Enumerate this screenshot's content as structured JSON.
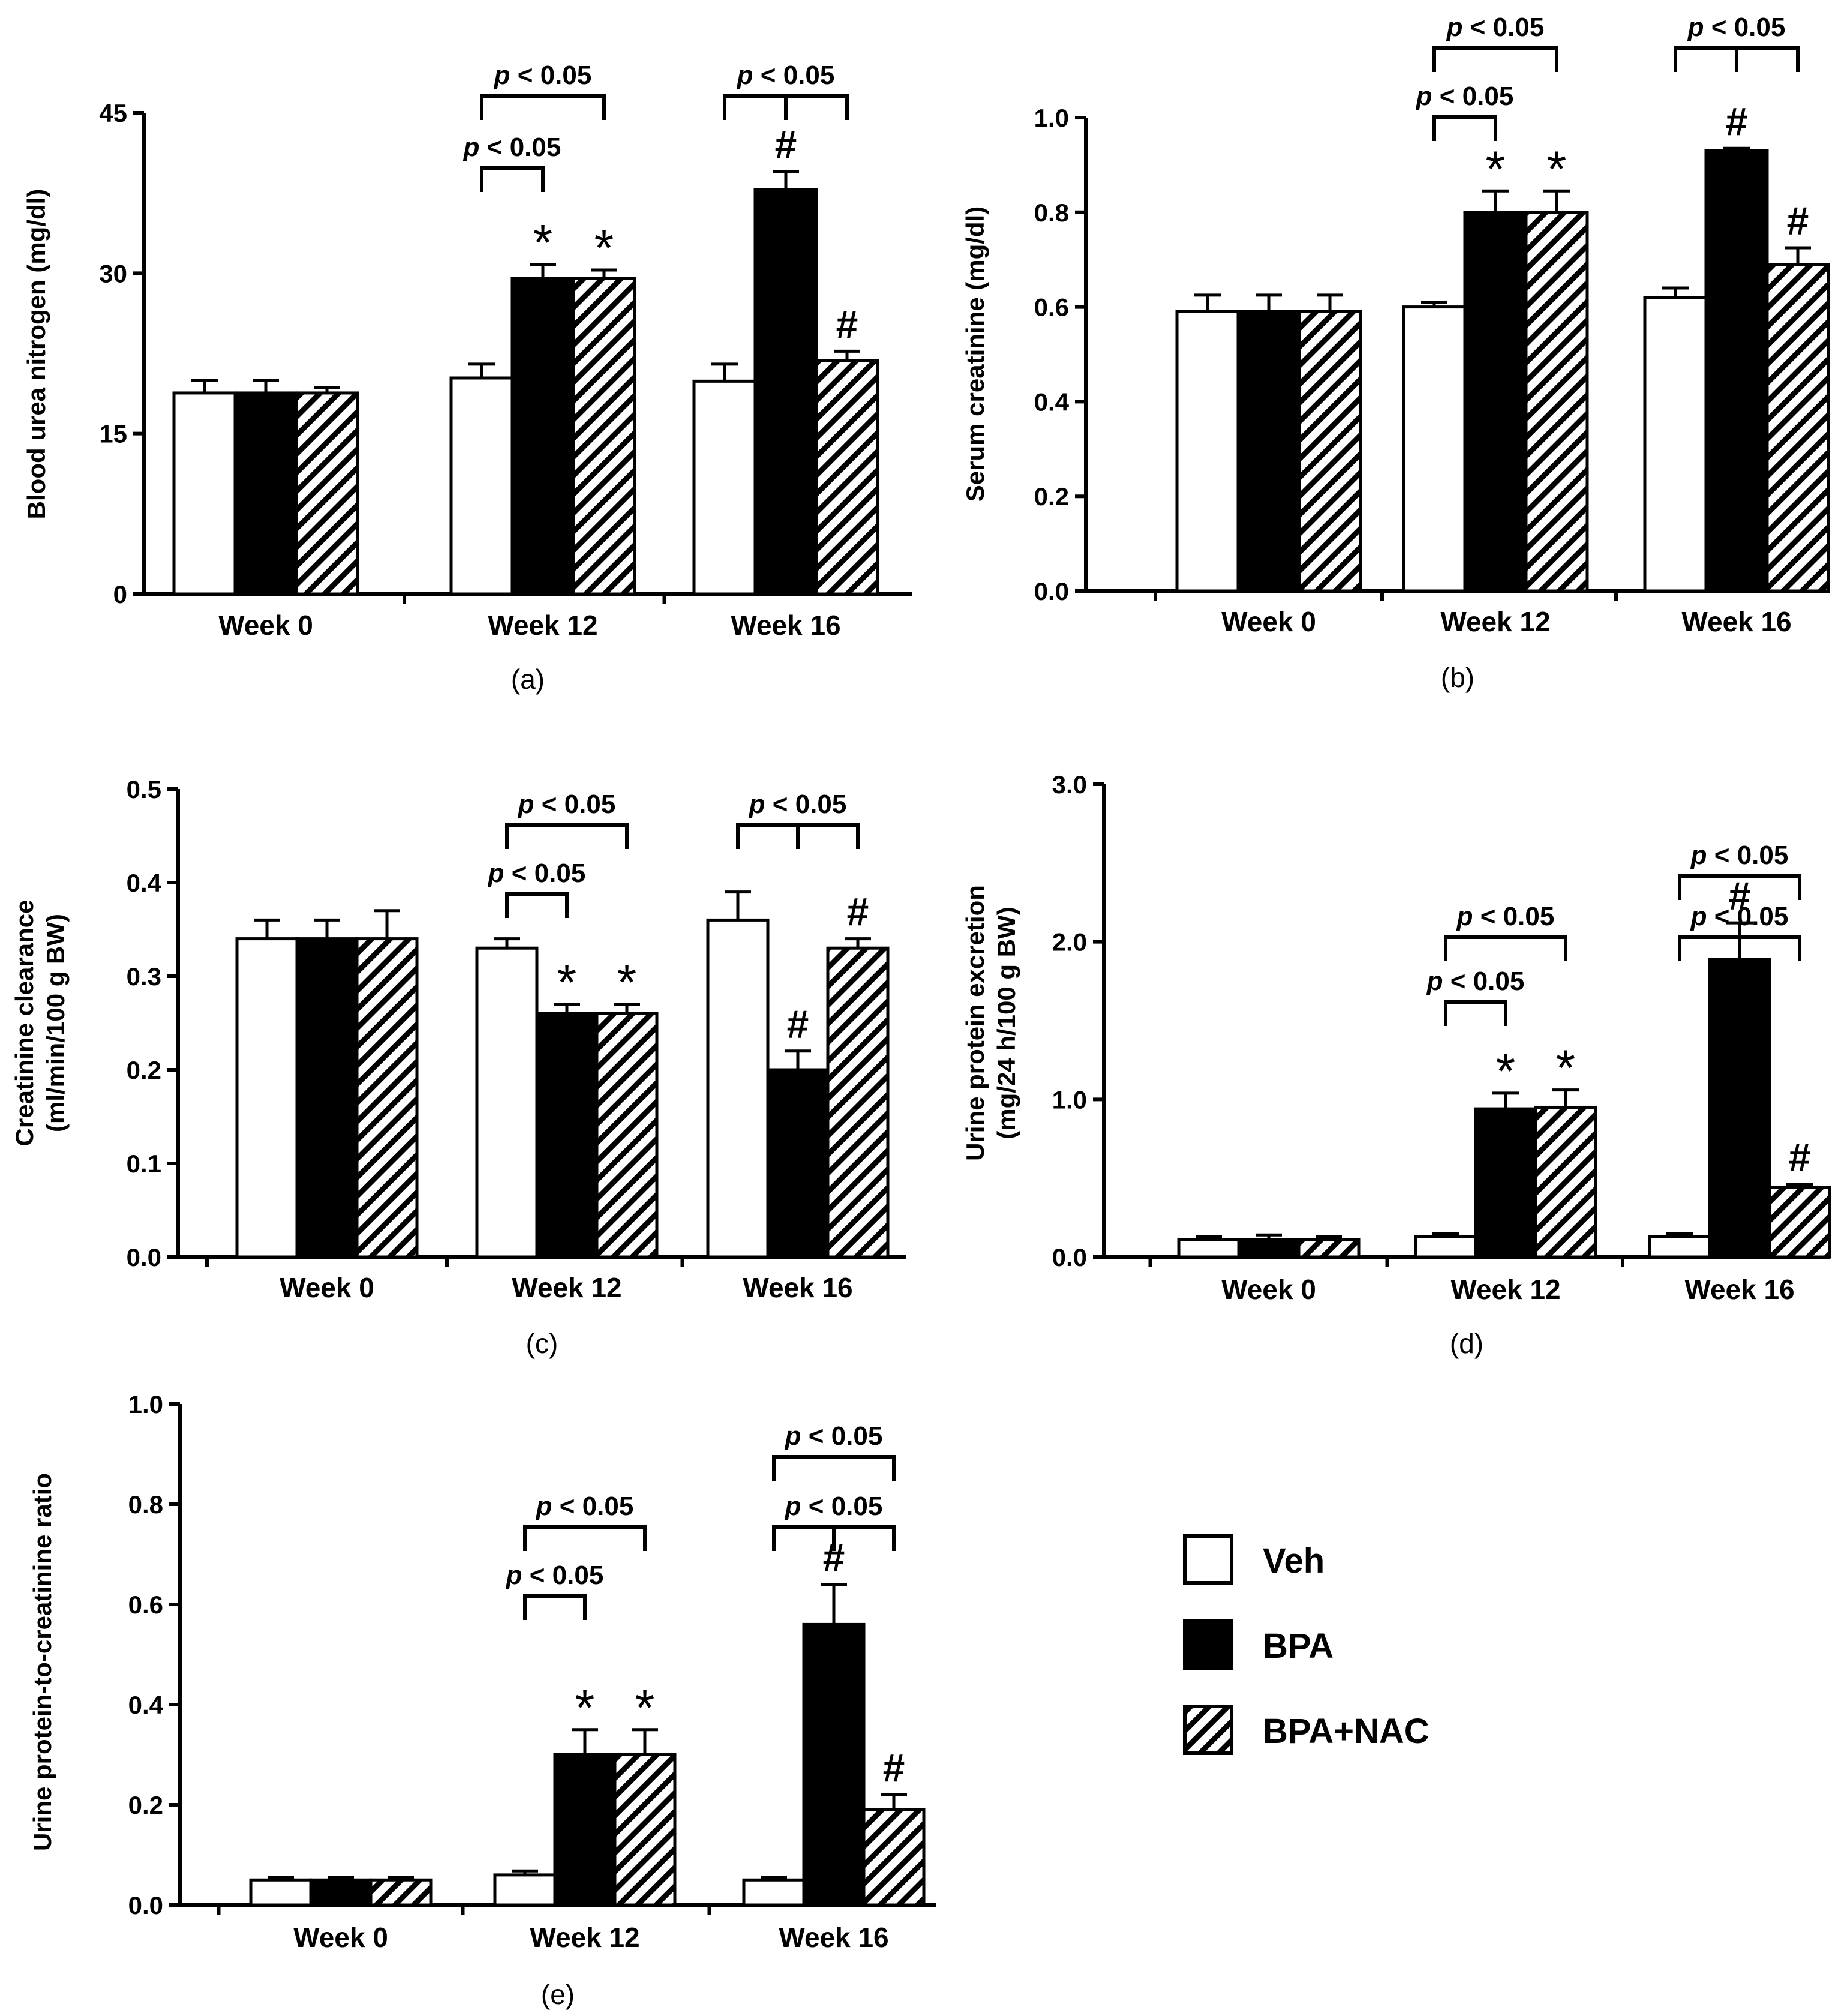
{
  "figure": {
    "legend": [
      {
        "label": "Veh",
        "pattern": "open"
      },
      {
        "label": "BPA",
        "pattern": "solid"
      },
      {
        "label": "BPA+NAC",
        "pattern": "hatched"
      }
    ]
  },
  "chart_data": [
    {
      "type": "bar",
      "panel": "(a)",
      "ylabel": "Blood urea nitrogen (mg/dl)",
      "ylim": [
        0,
        45
      ],
      "yticks": [
        "0",
        "15",
        "30",
        "45"
      ],
      "yticks_values": [
        0,
        15,
        30,
        45
      ],
      "categories": [
        "Week 0",
        "Week 12",
        "Week 16"
      ],
      "series": [
        {
          "name": "Veh",
          "values": [
            18.8,
            20.2,
            19.9
          ],
          "errors": [
            1.2,
            1.3,
            1.6
          ]
        },
        {
          "name": "BPA",
          "values": [
            18.8,
            29.5,
            37.8
          ],
          "errors": [
            1.2,
            1.3,
            1.7
          ]
        },
        {
          "name": "BPA+NAC",
          "values": [
            18.8,
            29.5,
            21.8
          ],
          "errors": [
            0.5,
            0.8,
            0.9
          ]
        }
      ],
      "markers": [
        {
          "text": "*",
          "category": 1,
          "series": 1
        },
        {
          "text": "*",
          "category": 1,
          "series": 2
        },
        {
          "text": "#",
          "category": 2,
          "series": 1
        },
        {
          "text": "#",
          "category": 2,
          "series": 2
        }
      ],
      "brackets": [
        {
          "text": "p < 0.05",
          "category": 1,
          "from": 0,
          "to": 1,
          "level": 1
        },
        {
          "text": "p < 0.05",
          "category": 1,
          "from": 0,
          "to": 2,
          "level": 2
        },
        {
          "text": "p < 0.05",
          "category": 2,
          "from": 0,
          "to": 2,
          "mid": 1,
          "level": 2
        }
      ]
    },
    {
      "type": "bar",
      "panel": "(b)",
      "ylabel": "Serum creatinine (mg/dl)",
      "ylim": [
        0,
        1.0
      ],
      "yticks": [
        "0.0",
        "0.2",
        "0.4",
        "0.6",
        "0.8",
        "1.0"
      ],
      "yticks_values": [
        0,
        0.2,
        0.4,
        0.6,
        0.8,
        1.0
      ],
      "categories": [
        "Week 0",
        "Week 12",
        "Week 16"
      ],
      "series": [
        {
          "name": "Veh",
          "values": [
            0.59,
            0.6,
            0.62
          ],
          "errors": [
            0.035,
            0.01,
            0.02
          ]
        },
        {
          "name": "BPA",
          "values": [
            0.59,
            0.8,
            0.93
          ],
          "errors": [
            0.035,
            0.045,
            0.005
          ]
        },
        {
          "name": "BPA+NAC",
          "values": [
            0.59,
            0.8,
            0.69
          ],
          "errors": [
            0.035,
            0.045,
            0.035
          ]
        }
      ],
      "markers": [
        {
          "text": "*",
          "category": 1,
          "series": 1
        },
        {
          "text": "*",
          "category": 1,
          "series": 2
        },
        {
          "text": "#",
          "category": 2,
          "series": 1
        },
        {
          "text": "#",
          "category": 2,
          "series": 2
        }
      ],
      "brackets": [
        {
          "text": "p < 0.05",
          "category": 1,
          "from": 0,
          "to": 1,
          "level": 1
        },
        {
          "text": "p < 0.05",
          "category": 1,
          "from": 0,
          "to": 2,
          "level": 2
        },
        {
          "text": "p < 0.05",
          "category": 2,
          "from": 0,
          "to": 2,
          "mid": 1,
          "level": 2
        }
      ]
    },
    {
      "type": "bar",
      "panel": "(c)",
      "ylabel": [
        "Creatinine clearance",
        "(ml/min/100 g BW)"
      ],
      "ylim": [
        0,
        0.5
      ],
      "yticks": [
        "0.0",
        "0.1",
        "0.2",
        "0.3",
        "0.4",
        "0.5"
      ],
      "yticks_values": [
        0,
        0.1,
        0.2,
        0.3,
        0.4,
        0.5
      ],
      "categories": [
        "Week 0",
        "Week 12",
        "Week 16"
      ],
      "series": [
        {
          "name": "Veh",
          "values": [
            0.34,
            0.33,
            0.36
          ],
          "errors": [
            0.02,
            0.01,
            0.03
          ]
        },
        {
          "name": "BPA",
          "values": [
            0.34,
            0.26,
            0.2
          ],
          "errors": [
            0.02,
            0.01,
            0.02
          ]
        },
        {
          "name": "BPA+NAC",
          "values": [
            0.34,
            0.26,
            0.33
          ],
          "errors": [
            0.03,
            0.01,
            0.01
          ]
        }
      ],
      "markers": [
        {
          "text": "*",
          "category": 1,
          "series": 1
        },
        {
          "text": "*",
          "category": 1,
          "series": 2
        },
        {
          "text": "#",
          "category": 2,
          "series": 1
        },
        {
          "text": "#",
          "category": 2,
          "series": 2
        }
      ],
      "brackets": [
        {
          "text": "p < 0.05",
          "category": 1,
          "from": 0,
          "to": 1,
          "level": 1
        },
        {
          "text": "p < 0.05",
          "category": 1,
          "from": 0,
          "to": 2,
          "level": 2
        },
        {
          "text": "p < 0.05",
          "category": 2,
          "from": 0,
          "to": 2,
          "mid": 1,
          "level": 2
        }
      ]
    },
    {
      "type": "bar",
      "panel": "(d)",
      "ylabel": [
        "Urine protein excretion",
        "(mg/24 h/100 g BW)"
      ],
      "ylim": [
        0,
        3.0
      ],
      "yticks": [
        "0.0",
        "1.0",
        "2.0",
        "3.0"
      ],
      "yticks_values": [
        0,
        1.0,
        2.0,
        3.0
      ],
      "categories": [
        "Week 0",
        "Week 12",
        "Week 16"
      ],
      "series": [
        {
          "name": "Veh",
          "values": [
            0.11,
            0.13,
            0.13
          ],
          "errors": [
            0.02,
            0.02,
            0.02
          ]
        },
        {
          "name": "BPA",
          "values": [
            0.11,
            0.94,
            1.89
          ],
          "errors": [
            0.03,
            0.1,
            0.23
          ]
        },
        {
          "name": "BPA+NAC",
          "values": [
            0.11,
            0.95,
            0.44
          ],
          "errors": [
            0.02,
            0.11,
            0.02
          ]
        }
      ],
      "markers": [
        {
          "text": "*",
          "category": 1,
          "series": 1
        },
        {
          "text": "*",
          "category": 1,
          "series": 2
        },
        {
          "text": "#",
          "category": 2,
          "series": 1
        },
        {
          "text": "#",
          "category": 2,
          "series": 2
        }
      ],
      "brackets": [
        {
          "text": "p < 0.05",
          "category": 1,
          "from": 0,
          "to": 1,
          "level": 1
        },
        {
          "text": "p < 0.05",
          "category": 1,
          "from": 0,
          "to": 2,
          "level": 2
        },
        {
          "text": "p < 0.05",
          "category": 2,
          "from": 0,
          "to": 2,
          "mid": 1,
          "level": 2
        },
        {
          "text": "p < 0.05",
          "category": 2,
          "from": 0,
          "to": 2,
          "level": 3
        }
      ]
    },
    {
      "type": "bar",
      "panel": "(e)",
      "ylabel": "Urine protein-to-creatinine ratio",
      "ylim": [
        0,
        1.0
      ],
      "yticks": [
        "0.0",
        "0.2",
        "0.4",
        "0.6",
        "0.8",
        "1.0"
      ],
      "yticks_values": [
        0,
        0.2,
        0.4,
        0.6,
        0.8,
        1.0
      ],
      "categories": [
        "Week 0",
        "Week 12",
        "Week 16"
      ],
      "series": [
        {
          "name": "Veh",
          "values": [
            0.05,
            0.06,
            0.05
          ],
          "errors": [
            0.005,
            0.008,
            0.005
          ]
        },
        {
          "name": "BPA",
          "values": [
            0.05,
            0.3,
            0.56
          ],
          "errors": [
            0.005,
            0.05,
            0.08
          ]
        },
        {
          "name": "BPA+NAC",
          "values": [
            0.05,
            0.3,
            0.19
          ],
          "errors": [
            0.005,
            0.05,
            0.03
          ]
        }
      ],
      "markers": [
        {
          "text": "*",
          "category": 1,
          "series": 1
        },
        {
          "text": "*",
          "category": 1,
          "series": 2
        },
        {
          "text": "#",
          "category": 2,
          "series": 1
        },
        {
          "text": "#",
          "category": 2,
          "series": 2
        }
      ],
      "brackets": [
        {
          "text": "p < 0.05",
          "category": 1,
          "from": 0,
          "to": 1,
          "level": 1
        },
        {
          "text": "p < 0.05",
          "category": 1,
          "from": 0,
          "to": 2,
          "level": 2
        },
        {
          "text": "p < 0.05",
          "category": 2,
          "from": 0,
          "to": 2,
          "mid": 1,
          "level": 2
        },
        {
          "text": "p < 0.05",
          "category": 2,
          "from": 0,
          "to": 2,
          "level": 3
        }
      ]
    }
  ]
}
